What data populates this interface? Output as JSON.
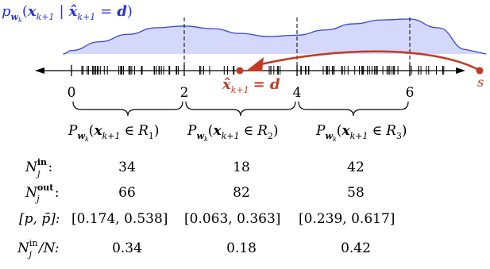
{
  "top_label": "p_{w_k}(x_{k+1} | x̂_{k+1} = d)",
  "top_label_parts": {
    "p": "p",
    "w": "w",
    "k": "k",
    "open": "(",
    "x": "x",
    "k1": "k+1",
    "given": "|",
    "xhat": "x̂",
    "eq": "=",
    "d": "d",
    "close": ")"
  },
  "axis": {
    "ticks": [
      "0",
      "2",
      "4",
      "6"
    ],
    "tick_values": [
      0,
      2,
      4,
      6
    ],
    "start_marker": "s",
    "estimate_label": "x̂",
    "estimate_sub": "k+1",
    "estimate_eq": "= d",
    "estimate_position": 3.1,
    "start_position": 7.35,
    "range": [
      -0.2,
      7.35
    ]
  },
  "density": {
    "color_fill": "#d4d8fb",
    "color_line": "#3a44e0",
    "x": [
      -0.15,
      0.0,
      0.5,
      1.0,
      1.5,
      2.0,
      2.5,
      3.0,
      3.5,
      4.0,
      4.5,
      5.0,
      5.5,
      6.0,
      6.5,
      7.0
    ],
    "density": [
      0.0,
      0.08,
      0.28,
      0.45,
      0.6,
      0.64,
      0.58,
      0.47,
      0.4,
      0.43,
      0.55,
      0.69,
      0.78,
      0.8,
      0.6,
      0.1
    ],
    "dividers": [
      2,
      4,
      6
    ]
  },
  "regions": [
    {
      "label": "P_{w_k}(x_{k+1} ∈ R_1)",
      "P": "P",
      "w": "w",
      "k": "k",
      "x": "x",
      "k1": "k+1",
      "in": "∈",
      "R": "R",
      "idx": "1",
      "from": 0,
      "to": 2
    },
    {
      "label": "P_{w_k}(x_{k+1} ∈ R_2)",
      "P": "P",
      "w": "w",
      "k": "k",
      "x": "x",
      "k1": "k+1",
      "in": "∈",
      "R": "R",
      "idx": "2",
      "from": 2,
      "to": 4
    },
    {
      "label": "P_{w_k}(x_{k+1} ∈ R_3)",
      "P": "P",
      "w": "w",
      "k": "k",
      "x": "x",
      "k1": "k+1",
      "in": "∈",
      "R": "R",
      "idx": "3",
      "from": 4,
      "to": 6
    }
  ],
  "table": {
    "rows": [
      {
        "label_main": "N",
        "label_sub": "j",
        "label_sup": "in",
        "label_tail": ":",
        "values": [
          "34",
          "18",
          "42"
        ]
      },
      {
        "label_main": "N",
        "label_sub": "j",
        "label_sup": "out",
        "label_tail": ":",
        "values": [
          "66",
          "82",
          "58"
        ]
      },
      {
        "label_main": "[p, p̄]:",
        "values": [
          "[0.174,  0.538]",
          "[0.063,  0.363]",
          "[0.239,  0.617]"
        ]
      },
      {
        "label_main": "N",
        "label_sub": "j",
        "label_sup": "in",
        "label_tail": "/N:",
        "values": [
          "0.34",
          "0.18",
          "0.42"
        ]
      }
    ]
  },
  "colors": {
    "accent_red": "#c23b22",
    "axis": "#000000",
    "blue": "#2a2fe0"
  }
}
